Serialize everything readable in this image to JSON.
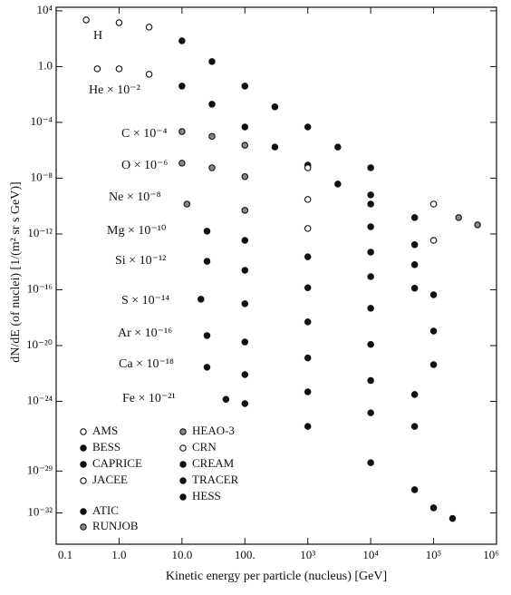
{
  "chart_data": {
    "type": "scatter",
    "xlabel": "Kinetic energy per particle (nucleus)   [GeV]",
    "ylabel": "dN/dE (of nuclei)   [1/(m² sr s GeV)]",
    "xscale": "log",
    "yscale": "log",
    "xlim": [
      0.1,
      1000000
    ],
    "ylim": [
      5.7e-35,
      18000
    ],
    "xticks": [
      0.1,
      {
        "value": 1,
        "label": "1.0"
      },
      {
        "value": 10,
        "label": "10.0"
      },
      {
        "value": 100,
        "label": "100."
      },
      {
        "value": 1000,
        "label": "10³"
      },
      {
        "value": 10000,
        "label": "10⁴"
      },
      {
        "value": 100000,
        "label": "10⁵"
      },
      {
        "value": 1000000,
        "label": "10⁶"
      }
    ],
    "yticks": [
      {
        "value": 10000,
        "label": "10⁴"
      },
      {
        "value": 1,
        "label": "1.0"
      },
      {
        "value": 0.0001,
        "label": "10⁻⁴"
      },
      {
        "value": 1e-08,
        "label": "10⁻⁸"
      },
      {
        "value": 1e-12,
        "label": "10⁻¹²"
      },
      {
        "value": 1e-16,
        "label": "10⁻¹⁶"
      },
      {
        "value": 1e-20,
        "label": "10⁻²⁰"
      },
      {
        "value": 1e-24,
        "label": "10⁻²⁴"
      },
      {
        "value": 1e-29,
        "label": "10⁻²⁹"
      },
      {
        "value": 1e-32,
        "label": "10⁻³²"
      }
    ],
    "legend": "lower left",
    "annotations": [
      "H",
      "He × 10⁻²",
      "C × 10⁻⁴",
      "O × 10⁻⁶",
      "Ne × 10⁻⁸",
      "Mg × 10⁻¹⁰",
      "Si × 10⁻¹²",
      "S × 10⁻¹⁴",
      "Ar × 10⁻¹⁶",
      "Ca × 10⁻¹⁸",
      "Fe × 10⁻²¹"
    ],
    "series": [
      {
        "name": "AMS",
        "marker": "open",
        "color": "#111",
        "x": [
          0.3,
          1,
          3,
          0.45,
          1,
          3
        ],
        "y": [
          2200,
          1400,
          680,
          0.7,
          0.7,
          0.28
        ]
      },
      {
        "name": "BESS",
        "marker": "filled",
        "color": "#111",
        "x": [
          10,
          30,
          10,
          30
        ],
        "y": [
          71,
          2.3,
          0.04,
          0.002
        ]
      },
      {
        "name": "CAPRICE",
        "marker": "filled",
        "color": "#111",
        "x": [
          100,
          100
        ],
        "y": [
          0.04,
          4.7e-05
        ]
      },
      {
        "name": "JACEE",
        "marker": "open",
        "color": "#111",
        "x": [
          100000,
          100000
        ],
        "y": [
          1.4e-10,
          3.5e-13
        ]
      },
      {
        "name": "ATIC",
        "marker": "filled",
        "color": "#111",
        "x": [
          300,
          1000,
          3000,
          10000,
          300,
          1000,
          3000,
          10000
        ],
        "y": [
          0.0013,
          4.7e-05,
          1.7e-06,
          5.6e-08,
          1.7e-06,
          8.7e-08,
          3.8e-09,
          1.4e-10
        ]
      },
      {
        "name": "RUNJOB",
        "marker": "dotted",
        "color": "#111",
        "x": [
          250000,
          500000
        ],
        "y": [
          1.5e-11,
          4.5e-12
        ]
      },
      {
        "name": "HEAO-3",
        "marker": "dotted",
        "color": "#111",
        "x": [
          10,
          30,
          100,
          10,
          30,
          100,
          12,
          100
        ],
        "y": [
          2.2e-05,
          1e-05,
          2.3e-06,
          1.2e-07,
          5.6e-08,
          1.3e-08,
          1.4e-10,
          5e-11
        ]
      },
      {
        "name": "CRN",
        "marker": "open",
        "color": "#111",
        "x": [
          1000,
          1000,
          1000
        ],
        "y": [
          5.6e-08,
          3e-10,
          2.5e-12
        ]
      },
      {
        "name": "CREAM",
        "marker": "filled",
        "color": "#111",
        "x": [
          10000,
          50000,
          10000,
          50000,
          10000,
          50000,
          10000,
          50000,
          100000,
          10000,
          100000
        ],
        "y": [
          6.3e-10,
          1.5e-11,
          3.3e-12,
          1.7e-13,
          5e-14,
          6.3e-15,
          8.7e-16,
          1.3e-16,
          4.4e-17,
          4.7e-18,
          1.1e-19
        ]
      },
      {
        "name": "TRACER",
        "marker": "filled",
        "color": "#111",
        "x": [
          25,
          100,
          1000,
          25,
          100,
          1000,
          20,
          100,
          1000,
          10000,
          100000,
          25,
          100,
          1000,
          10000,
          50000,
          25,
          100,
          1000,
          10000,
          50000
        ],
        "y": [
          1.6e-12,
          3.5e-13,
          2.3e-14,
          1.1e-14,
          2.5e-15,
          1.4e-16,
          2.1e-17,
          1e-17,
          5e-19,
          1.2e-20,
          4.3e-22,
          5.2e-20,
          1.8e-20,
          1.3e-21,
          3.1e-23,
          3.1e-24,
          2.8e-22,
          8.3e-23,
          4.8e-24,
          1.5e-25,
          1.6e-26
        ]
      },
      {
        "name": "HESS",
        "marker": "filled",
        "color": "#111",
        "x": [
          50,
          100,
          1000,
          10000,
          50000,
          100000,
          200000
        ],
        "y": [
          1.4e-24,
          6.9e-25,
          1.6e-26,
          4e-29,
          4.6e-31,
          2.3e-32,
          4e-33
        ]
      }
    ]
  }
}
